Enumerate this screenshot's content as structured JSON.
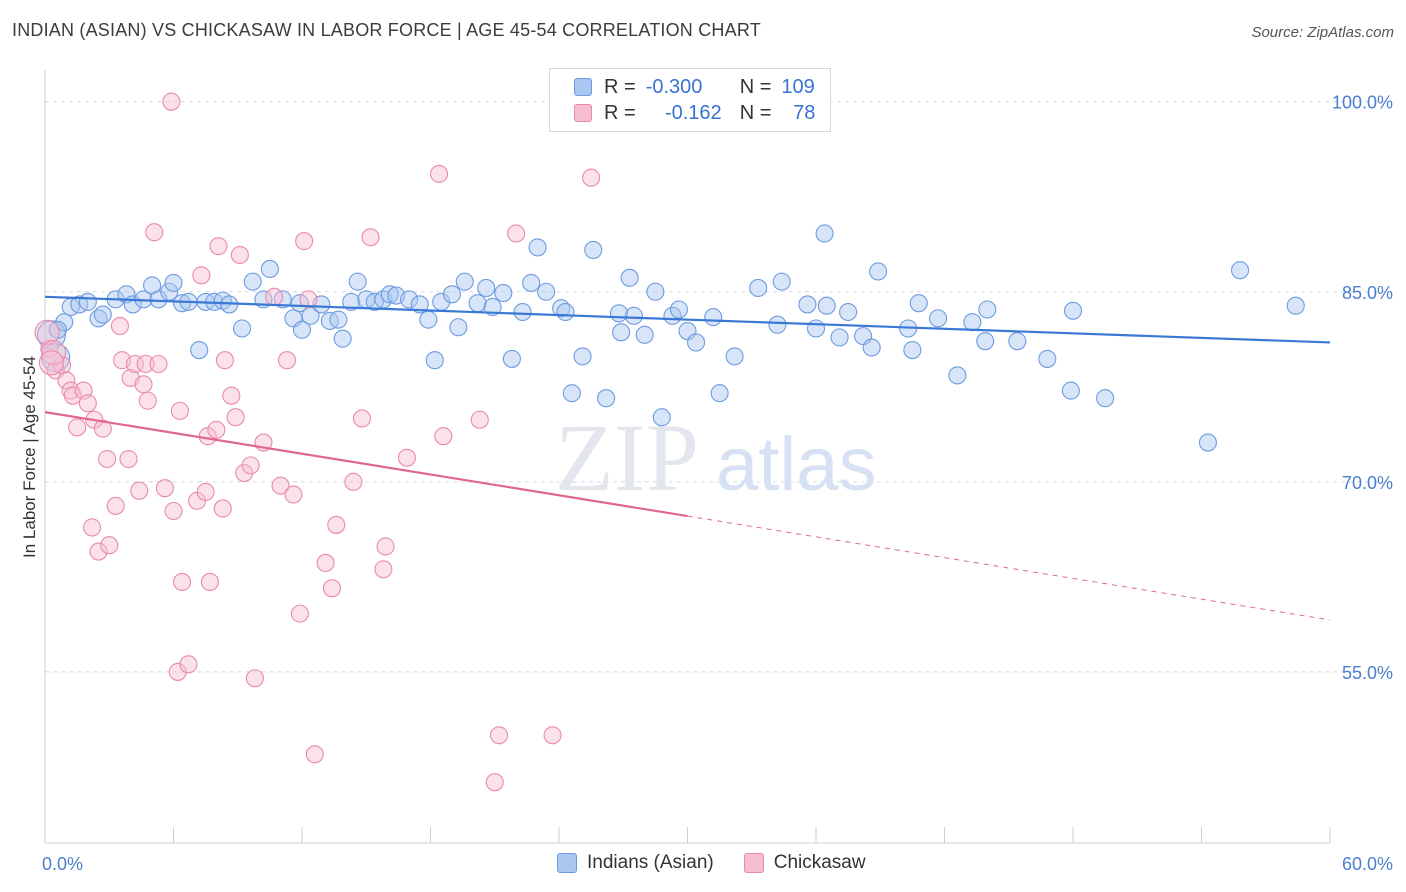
{
  "header": {
    "title": "INDIAN (ASIAN) VS CHICKASAW IN LABOR FORCE | AGE 45-54 CORRELATION CHART",
    "source": "Source: ZipAtlas.com"
  },
  "watermark": {
    "part1": "ZIP",
    "part2": "atlas"
  },
  "legend": {
    "rows": [
      {
        "r_label": "R =",
        "r_value": "-0.300",
        "n_label": "N =",
        "n_value": "109",
        "color": "#a9c6f0",
        "stroke": "#6d9be0"
      },
      {
        "r_label": "R =",
        "r_value": "-0.162",
        "n_label": "N =",
        "n_value": "78",
        "color": "#f6bfd1",
        "stroke": "#e98aab"
      }
    ]
  },
  "bottom_legend": {
    "items": [
      {
        "label": "Indians (Asian)",
        "color": "#a9c6f0",
        "stroke": "#6d9be0"
      },
      {
        "label": "Chickasaw",
        "color": "#f6bfd1",
        "stroke": "#e98aab"
      }
    ]
  },
  "chart_data": {
    "type": "scatter",
    "title": "INDIAN (ASIAN) VS CHICKASAW IN LABOR FORCE | AGE 45-54 CORRELATION CHART",
    "xlabel": "",
    "ylabel": "In Labor Force | Age 45-54",
    "xlim": [
      0,
      60
    ],
    "ylim": [
      41.5,
      102.5
    ],
    "x_tick_labels": [
      "0.0%",
      "60.0%"
    ],
    "y_ticks": [
      55,
      70,
      85,
      100
    ],
    "y_tick_labels": [
      "55.0%",
      "70.0%",
      "85.0%",
      "100.0%"
    ],
    "grid": "horizontal dashed",
    "legend_position": "top-center",
    "colors": {
      "blue": "#3a78d6",
      "pink": "#e0688f",
      "tick": "#4a7fd0"
    },
    "series": [
      {
        "name": "Indians (Asian)",
        "color": "#3a78d6",
        "trend": {
          "x": [
            0,
            60
          ],
          "y": [
            84.6,
            81.0
          ],
          "style": "solid"
        },
        "points": [
          [
            0.3,
            81.6
          ],
          [
            0.5,
            79.8
          ],
          [
            0.9,
            82.6
          ],
          [
            1.2,
            83.8
          ],
          [
            1.6,
            84.0
          ],
          [
            2.0,
            84.2
          ],
          [
            2.5,
            82.9
          ],
          [
            2.7,
            83.2
          ],
          [
            3.3,
            84.4
          ],
          [
            3.8,
            84.8
          ],
          [
            4.1,
            84.0
          ],
          [
            4.6,
            84.4
          ],
          [
            5.0,
            85.5
          ],
          [
            5.3,
            84.4
          ],
          [
            5.8,
            85.0
          ],
          [
            6.0,
            85.7
          ],
          [
            6.4,
            84.1
          ],
          [
            6.7,
            84.2
          ],
          [
            7.2,
            80.4
          ],
          [
            7.5,
            84.2
          ],
          [
            7.9,
            84.2
          ],
          [
            8.3,
            84.3
          ],
          [
            8.6,
            84.0
          ],
          [
            9.2,
            82.1
          ],
          [
            9.7,
            85.8
          ],
          [
            10.2,
            84.4
          ],
          [
            10.5,
            86.8
          ],
          [
            11.1,
            84.4
          ],
          [
            11.6,
            82.9
          ],
          [
            11.9,
            84.1
          ],
          [
            12.0,
            82.0
          ],
          [
            12.4,
            83.1
          ],
          [
            12.9,
            84.0
          ],
          [
            13.3,
            82.7
          ],
          [
            13.7,
            82.8
          ],
          [
            13.9,
            81.3
          ],
          [
            14.3,
            84.2
          ],
          [
            14.6,
            85.8
          ],
          [
            15.0,
            84.4
          ],
          [
            15.4,
            84.2
          ],
          [
            15.8,
            84.4
          ],
          [
            16.1,
            84.8
          ],
          [
            16.4,
            84.7
          ],
          [
            17.0,
            84.4
          ],
          [
            17.5,
            84.0
          ],
          [
            17.9,
            82.8
          ],
          [
            18.2,
            79.6
          ],
          [
            18.5,
            84.2
          ],
          [
            19.0,
            84.8
          ],
          [
            19.3,
            82.2
          ],
          [
            19.6,
            85.8
          ],
          [
            20.2,
            84.1
          ],
          [
            20.6,
            85.3
          ],
          [
            20.9,
            83.8
          ],
          [
            21.4,
            84.9
          ],
          [
            21.8,
            79.7
          ],
          [
            22.3,
            83.4
          ],
          [
            22.7,
            85.7
          ],
          [
            23.0,
            88.5
          ],
          [
            23.4,
            85.0
          ],
          [
            24.1,
            83.7
          ],
          [
            24.3,
            83.4
          ],
          [
            24.6,
            77.0
          ],
          [
            25.1,
            79.9
          ],
          [
            25.6,
            88.3
          ],
          [
            26.2,
            76.6
          ],
          [
            26.8,
            83.3
          ],
          [
            26.9,
            81.8
          ],
          [
            27.3,
            86.1
          ],
          [
            27.5,
            83.1
          ],
          [
            28.0,
            81.6
          ],
          [
            28.5,
            85.0
          ],
          [
            28.8,
            75.1
          ],
          [
            29.3,
            83.1
          ],
          [
            29.6,
            83.6
          ],
          [
            30.0,
            81.9
          ],
          [
            30.4,
            81.0
          ],
          [
            31.2,
            83.0
          ],
          [
            31.5,
            77.0
          ],
          [
            32.2,
            79.9
          ],
          [
            33.3,
            85.3
          ],
          [
            34.2,
            82.4
          ],
          [
            34.4,
            85.8
          ],
          [
            35.6,
            84.0
          ],
          [
            36.0,
            82.1
          ],
          [
            36.5,
            83.9
          ],
          [
            37.1,
            81.4
          ],
          [
            37.5,
            83.4
          ],
          [
            38.2,
            81.5
          ],
          [
            38.6,
            80.6
          ],
          [
            38.9,
            86.6
          ],
          [
            40.3,
            82.1
          ],
          [
            40.5,
            80.4
          ],
          [
            40.8,
            84.1
          ],
          [
            41.7,
            82.9
          ],
          [
            42.6,
            78.4
          ],
          [
            43.3,
            82.6
          ],
          [
            43.9,
            81.1
          ],
          [
            44.0,
            83.6
          ],
          [
            45.4,
            81.1
          ],
          [
            46.8,
            79.7
          ],
          [
            47.9,
            77.2
          ],
          [
            48.0,
            83.5
          ],
          [
            49.5,
            76.6
          ],
          [
            36.4,
            89.6
          ],
          [
            54.3,
            73.1
          ],
          [
            55.8,
            86.7
          ],
          [
            58.4,
            83.9
          ],
          [
            0.6,
            82.0
          ]
        ]
      },
      {
        "name": "Chickasaw",
        "color": "#e0688f",
        "trend": {
          "x": [
            0,
            30
          ],
          "y": [
            75.5,
            67.3
          ],
          "style": "solid"
        },
        "trend_extension": {
          "x": [
            30,
            60
          ],
          "y": [
            67.3,
            59.1
          ],
          "style": "dashed"
        },
        "points": [
          [
            0.2,
            80.5
          ],
          [
            0.5,
            78.8
          ],
          [
            0.8,
            79.2
          ],
          [
            1.0,
            78.0
          ],
          [
            1.2,
            77.2
          ],
          [
            1.3,
            76.8
          ],
          [
            1.5,
            74.3
          ],
          [
            1.8,
            77.2
          ],
          [
            2.0,
            76.2
          ],
          [
            2.2,
            66.4
          ],
          [
            2.3,
            74.9
          ],
          [
            2.5,
            64.5
          ],
          [
            2.7,
            74.2
          ],
          [
            2.9,
            71.8
          ],
          [
            3.0,
            65.0
          ],
          [
            3.3,
            68.1
          ],
          [
            3.5,
            82.3
          ],
          [
            3.6,
            79.6
          ],
          [
            3.9,
            71.8
          ],
          [
            4.0,
            78.2
          ],
          [
            4.2,
            79.3
          ],
          [
            4.4,
            69.3
          ],
          [
            4.6,
            77.7
          ],
          [
            4.7,
            79.3
          ],
          [
            4.8,
            76.4
          ],
          [
            5.1,
            89.7
          ],
          [
            5.3,
            79.3
          ],
          [
            5.6,
            69.5
          ],
          [
            5.9,
            100.0
          ],
          [
            6.0,
            67.7
          ],
          [
            6.2,
            55.0
          ],
          [
            6.3,
            75.6
          ],
          [
            6.4,
            62.1
          ],
          [
            6.7,
            55.6
          ],
          [
            7.1,
            68.5
          ],
          [
            7.3,
            86.3
          ],
          [
            7.5,
            69.2
          ],
          [
            7.6,
            73.6
          ],
          [
            7.7,
            62.1
          ],
          [
            8.0,
            74.1
          ],
          [
            8.1,
            88.6
          ],
          [
            8.3,
            67.9
          ],
          [
            8.4,
            79.6
          ],
          [
            8.7,
            76.8
          ],
          [
            8.9,
            75.1
          ],
          [
            9.1,
            87.9
          ],
          [
            9.3,
            70.7
          ],
          [
            9.6,
            71.3
          ],
          [
            9.8,
            54.5
          ],
          [
            10.2,
            73.1
          ],
          [
            10.7,
            84.6
          ],
          [
            11.0,
            69.7
          ],
          [
            11.3,
            79.6
          ],
          [
            11.6,
            69.0
          ],
          [
            11.9,
            59.6
          ],
          [
            12.1,
            89.0
          ],
          [
            12.3,
            84.4
          ],
          [
            12.6,
            48.5
          ],
          [
            13.1,
            63.6
          ],
          [
            13.4,
            61.6
          ],
          [
            13.6,
            66.6
          ],
          [
            14.4,
            70.0
          ],
          [
            14.8,
            75.0
          ],
          [
            15.2,
            89.3
          ],
          [
            15.8,
            63.1
          ],
          [
            15.9,
            64.9
          ],
          [
            16.9,
            71.9
          ],
          [
            18.4,
            94.3
          ],
          [
            18.6,
            73.6
          ],
          [
            20.3,
            74.9
          ],
          [
            21.0,
            46.3
          ],
          [
            21.2,
            50.0
          ],
          [
            22.0,
            89.6
          ],
          [
            23.7,
            50.0
          ],
          [
            25.5,
            94.0
          ],
          [
            0.1,
            81.8
          ],
          [
            0.4,
            80.2
          ],
          [
            0.3,
            79.4
          ]
        ]
      }
    ]
  }
}
